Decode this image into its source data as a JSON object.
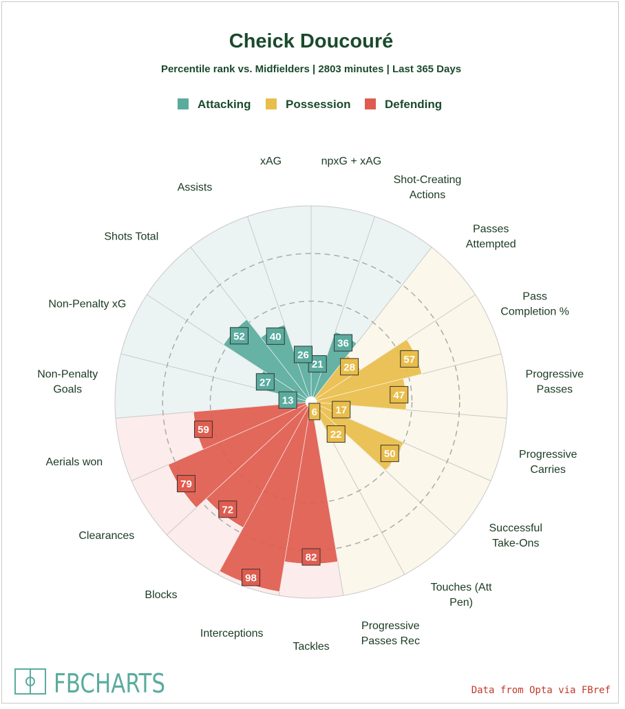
{
  "chart_data": {
    "type": "polar-bar",
    "title": "Cheick Doucouré",
    "subtitle": "Percentile rank vs. Midfielders | 2803 minutes | Last 365 Days",
    "rlim": [
      0,
      100
    ],
    "legend": [
      {
        "name": "Attacking",
        "color": "#5aab9e"
      },
      {
        "name": "Possession",
        "color": "#e9bd4a"
      },
      {
        "name": "Defending",
        "color": "#e05c4f"
      }
    ],
    "categories": [
      {
        "label": "npxG + xAG",
        "value": 21,
        "group": "Attacking"
      },
      {
        "label": "Shot-Creating\nActions",
        "value": 36,
        "group": "Attacking"
      },
      {
        "label": "Passes\nAttempted",
        "value": 28,
        "group": "Possession"
      },
      {
        "label": "Pass\nCompletion %",
        "value": 57,
        "group": "Possession"
      },
      {
        "label": "Progressive\nPasses",
        "value": 47,
        "group": "Possession"
      },
      {
        "label": "Progressive\nCarries",
        "value": 17,
        "group": "Possession"
      },
      {
        "label": "Successful\nTake-Ons",
        "value": 50,
        "group": "Possession"
      },
      {
        "label": "Touches (Att\nPen)",
        "value": 22,
        "group": "Possession"
      },
      {
        "label": "Progressive\nPasses Rec",
        "value": 6,
        "group": "Possession"
      },
      {
        "label": "Tackles",
        "value": 82,
        "group": "Defending"
      },
      {
        "label": "Interceptions",
        "value": 98,
        "group": "Defending"
      },
      {
        "label": "Blocks",
        "value": 72,
        "group": "Defending"
      },
      {
        "label": "Clearances",
        "value": 79,
        "group": "Defending"
      },
      {
        "label": "Aerials won",
        "value": 59,
        "group": "Defending"
      },
      {
        "label": "Non-Penalty\nGoals",
        "value": 13,
        "group": "Attacking"
      },
      {
        "label": "Non-Penalty xG",
        "value": 27,
        "group": "Attacking"
      },
      {
        "label": "Shots Total",
        "value": 52,
        "group": "Attacking"
      },
      {
        "label": "Assists",
        "value": 40,
        "group": "Attacking"
      },
      {
        "label": "xAG",
        "value": 26,
        "group": "Attacking"
      }
    ]
  },
  "colors": {
    "title": "#1a4a2c",
    "Attacking": "#5aab9e",
    "Possession": "#e9bd4a",
    "Defending": "#e05c4f",
    "bg_Attacking": "#ebf4f3",
    "bg_Possession": "#fbf7ea",
    "bg_Defending": "#fcecec"
  },
  "branding": {
    "logo_text": "FBCHARTS",
    "source": "Data from Opta via FBref"
  }
}
